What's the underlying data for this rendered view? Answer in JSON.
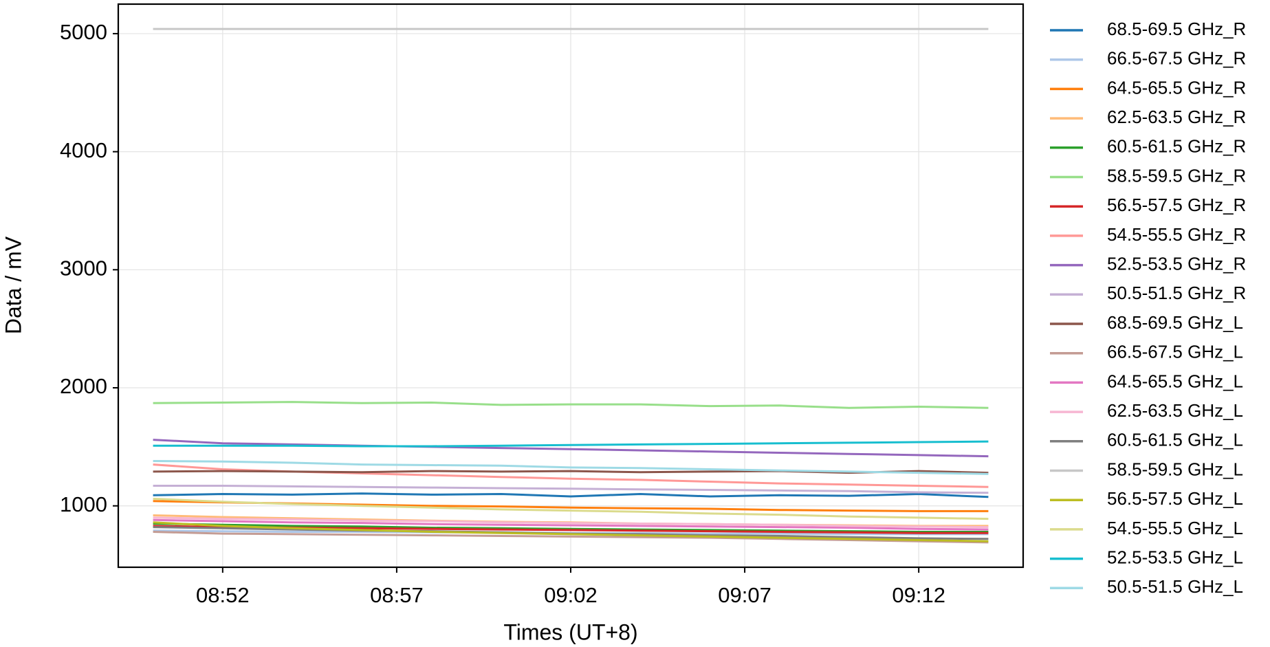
{
  "chart_data": {
    "type": "line",
    "xlabel": "Times (UT+8)",
    "ylabel": "Data / mV",
    "x": [
      "08:50",
      "08:52",
      "08:54",
      "08:56",
      "08:58",
      "09:00",
      "09:02",
      "09:04",
      "09:06",
      "09:08",
      "09:10",
      "09:12",
      "09:14"
    ],
    "xlim": [
      "08:49",
      "09:15"
    ],
    "xticks": [
      "08:52",
      "08:57",
      "09:02",
      "09:07",
      "09:12"
    ],
    "ylim": [
      480,
      5250
    ],
    "yticks": [
      1000,
      2000,
      3000,
      4000,
      5000
    ],
    "grid": true,
    "legend": "outside-right",
    "series": [
      {
        "name": "68.5-69.5 GHz_R",
        "color": "#1f77b4",
        "values": [
          1090,
          1100,
          1095,
          1105,
          1095,
          1100,
          1080,
          1100,
          1080,
          1090,
          1085,
          1100,
          1075
        ]
      },
      {
        "name": "66.5-67.5 GHz_R",
        "color": "#aec7e8",
        "values": [
          790,
          785,
          780,
          780,
          775,
          775,
          770,
          770,
          765,
          765,
          760,
          760,
          760
        ]
      },
      {
        "name": "64.5-65.5 GHz_R",
        "color": "#ff7f0e",
        "values": [
          1040,
          1030,
          1020,
          1010,
          1000,
          995,
          985,
          980,
          975,
          965,
          960,
          955,
          955
        ]
      },
      {
        "name": "62.5-63.5 GHz_R",
        "color": "#ffbb78",
        "values": [
          920,
          905,
          895,
          885,
          875,
          865,
          860,
          850,
          845,
          840,
          835,
          830,
          830
        ]
      },
      {
        "name": "60.5-61.5 GHz_R",
        "color": "#2ca02c",
        "values": [
          850,
          840,
          830,
          825,
          815,
          810,
          805,
          800,
          795,
          790,
          785,
          780,
          780
        ]
      },
      {
        "name": "58.5-59.5 GHz_R",
        "color": "#98df8a",
        "values": [
          1870,
          1875,
          1880,
          1870,
          1875,
          1855,
          1860,
          1860,
          1845,
          1850,
          1830,
          1840,
          1830
        ]
      },
      {
        "name": "56.5-57.5 GHz_R",
        "color": "#d62728",
        "values": [
          830,
          820,
          815,
          810,
          805,
          800,
          795,
          790,
          785,
          780,
          775,
          770,
          770
        ]
      },
      {
        "name": "54.5-55.5 GHz_R",
        "color": "#ff9896",
        "values": [
          1350,
          1310,
          1290,
          1275,
          1260,
          1245,
          1230,
          1220,
          1205,
          1190,
          1180,
          1170,
          1160
        ]
      },
      {
        "name": "52.5-53.5 GHz_R",
        "color": "#9467bd",
        "values": [
          1560,
          1530,
          1520,
          1510,
          1500,
          1490,
          1480,
          1470,
          1460,
          1450,
          1440,
          1430,
          1420
        ]
      },
      {
        "name": "50.5-51.5 GHz_R",
        "color": "#c5b0d5",
        "values": [
          1170,
          1170,
          1165,
          1160,
          1155,
          1150,
          1145,
          1140,
          1135,
          1130,
          1125,
          1115,
          1110
        ]
      },
      {
        "name": "68.5-69.5 GHz_L",
        "color": "#8c564b",
        "values": [
          1290,
          1295,
          1290,
          1285,
          1295,
          1290,
          1295,
          1285,
          1290,
          1295,
          1280,
          1295,
          1280
        ]
      },
      {
        "name": "66.5-67.5 GHz_L",
        "color": "#c49c94",
        "values": [
          780,
          765,
          760,
          755,
          750,
          745,
          740,
          735,
          730,
          720,
          710,
          700,
          690
        ]
      },
      {
        "name": "64.5-65.5 GHz_L",
        "color": "#e377c2",
        "values": [
          880,
          870,
          860,
          855,
          845,
          840,
          835,
          830,
          825,
          820,
          815,
          805,
          800
        ]
      },
      {
        "name": "62.5-63.5 GHz_L",
        "color": "#f7b6d2",
        "values": [
          900,
          890,
          885,
          875,
          870,
          860,
          855,
          850,
          845,
          840,
          830,
          825,
          820
        ]
      },
      {
        "name": "60.5-61.5 GHz_L",
        "color": "#7f7f7f",
        "values": [
          820,
          810,
          800,
          790,
          785,
          775,
          765,
          760,
          750,
          745,
          735,
          725,
          720
        ]
      },
      {
        "name": "58.5-59.5 GHz_L",
        "color": "#c7c7c7",
        "values": [
          5040,
          5040,
          5040,
          5040,
          5040,
          5040,
          5040,
          5040,
          5040,
          5040,
          5040,
          5040,
          5040
        ]
      },
      {
        "name": "56.5-57.5 GHz_L",
        "color": "#bcbd22",
        "values": [
          860,
          830,
          810,
          795,
          780,
          770,
          760,
          750,
          740,
          730,
          720,
          710,
          700
        ]
      },
      {
        "name": "54.5-55.5 GHz_L",
        "color": "#dbdb8d",
        "values": [
          1060,
          1035,
          1015,
          1000,
          985,
          970,
          960,
          950,
          935,
          925,
          910,
          900,
          890
        ]
      },
      {
        "name": "52.5-53.5 GHz_L",
        "color": "#17becf",
        "values": [
          1510,
          1510,
          1510,
          1505,
          1505,
          1510,
          1515,
          1520,
          1525,
          1530,
          1535,
          1540,
          1545
        ]
      },
      {
        "name": "50.5-51.5 GHz_L",
        "color": "#9edae5",
        "values": [
          1380,
          1375,
          1365,
          1350,
          1345,
          1340,
          1325,
          1320,
          1310,
          1300,
          1290,
          1280,
          1270
        ]
      }
    ]
  }
}
